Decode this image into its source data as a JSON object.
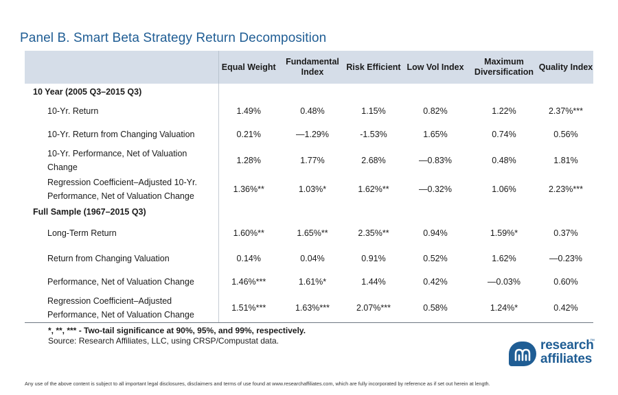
{
  "title": "Panel B. Smart Beta Strategy Return Decomposition",
  "columns": [
    "Equal Weight",
    "Fundamental Index",
    "Risk Efficient",
    "Low Vol Index",
    "Maximum Diversification",
    "Quality Index"
  ],
  "sections": [
    {
      "title": "10 Year (2005 Q3–2015 Q3)",
      "rows": [
        {
          "label": "10-Yr. Return",
          "values": [
            "1.49%",
            "0.48%",
            "1.15%",
            "0.82%",
            "1.22%",
            "2.37%***"
          ]
        },
        {
          "label": "10-Yr. Return from Changing Valuation",
          "values": [
            "0.21%",
            "—1.29%",
            "-1.53%",
            "1.65%",
            "0.74%",
            "0.56%"
          ]
        },
        {
          "label": "10-Yr. Performance, Net of Valuation Change",
          "values": [
            "1.28%",
            "1.77%",
            "2.68%",
            "—0.83%",
            "0.48%",
            "1.81%"
          ]
        },
        {
          "label": "Regression Coefficient–Adjusted 10-Yr. Performance, Net of Valuation Change",
          "values": [
            "1.36%**",
            "1.03%*",
            "1.62%**",
            "—0.32%",
            "1.06%",
            "2.23%***"
          ]
        }
      ]
    },
    {
      "title": "Full Sample (1967–2015 Q3)",
      "rows": [
        {
          "label": "Long-Term Return",
          "values": [
            "1.60%**",
            "1.65%**",
            "2.35%**",
            "0.94%",
            "1.59%*",
            "0.37%"
          ]
        },
        {
          "label": "Return from Changing Valuation",
          "values": [
            "0.14%",
            "0.04%",
            "0.91%",
            "0.52%",
            "1.62%",
            "—0.23%"
          ]
        },
        {
          "label": "Performance, Net of Valuation Change",
          "values": [
            "1.46%***",
            "1.61%*",
            "1.44%",
            "0.42%",
            "—0.03%",
            "0.60%"
          ]
        },
        {
          "label": "Regression Coefficient–Adjusted Performance, Net of Valuation Change",
          "values": [
            "1.51%***",
            "1.63%***",
            "2.07%***",
            "0.58%",
            "1.24%*",
            "0.42%"
          ]
        }
      ]
    }
  ],
  "notes": {
    "significance": "*, **, *** - Two-tail significance at 90%, 95%, and 99%, respectively.",
    "source": "Source: Research Affiliates, LLC, using CRSP/Compustat data."
  },
  "logo": {
    "line1": "research",
    "line2": "affiliates",
    "tm": "™"
  },
  "disclaimer": "Any use of the above content is subject to all important legal disclosures, disclaimers and terms of use found at www.researchaffiliates.com, which are fully incorporated by reference as if set out herein at length.",
  "colors": {
    "accent": "#1f5d94",
    "header_bg": "#d5dde8"
  }
}
